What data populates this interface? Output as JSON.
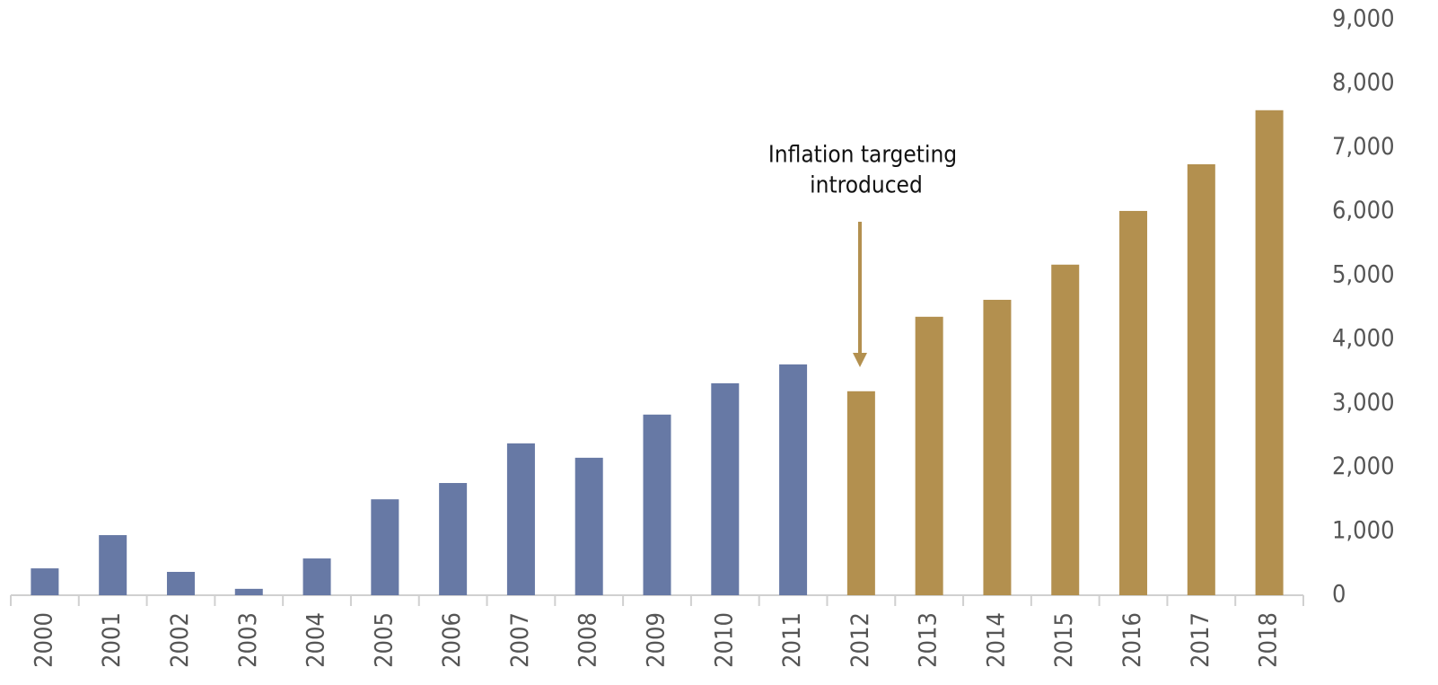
{
  "chart_data": {
    "type": "bar",
    "categories": [
      "2000",
      "2001",
      "2002",
      "2003",
      "2004",
      "2005",
      "2006",
      "2007",
      "2008",
      "2009",
      "2010",
      "2011",
      "2012",
      "2013",
      "2014",
      "2015",
      "2016",
      "2017",
      "2018"
    ],
    "values": [
      420,
      940,
      365,
      100,
      575,
      1500,
      1755,
      2375,
      2150,
      2825,
      3315,
      3610,
      3190,
      4355,
      4620,
      5170,
      6010,
      6740,
      7585
    ],
    "colors": [
      "#6779a5",
      "#6779a5",
      "#6779a5",
      "#6779a5",
      "#6779a5",
      "#6779a5",
      "#6779a5",
      "#6779a5",
      "#6779a5",
      "#6779a5",
      "#6779a5",
      "#6779a5",
      "#b3904f",
      "#b3904f",
      "#b3904f",
      "#b3904f",
      "#b3904f",
      "#b3904f",
      "#b3904f"
    ],
    "ylim": [
      0,
      9000
    ],
    "yticks": [
      0,
      {
        "value": 1000,
        "label": "1,000"
      },
      {
        "value": 2000,
        "label": "2,000"
      },
      {
        "value": 3000,
        "label": "3,000"
      },
      {
        "value": 4000,
        "label": "4,000"
      },
      {
        "value": 5000,
        "label": "5,000"
      },
      {
        "value": 6000,
        "label": "6,000"
      },
      {
        "value": 7000,
        "label": "7,000"
      },
      {
        "value": 8000,
        "label": "8,000"
      },
      {
        "value": 9000,
        "label": "9,000"
      }
    ],
    "y_axis_side": "right",
    "grid": false,
    "annotation": [
      "Inflation targeting",
      "introduced"
    ]
  }
}
